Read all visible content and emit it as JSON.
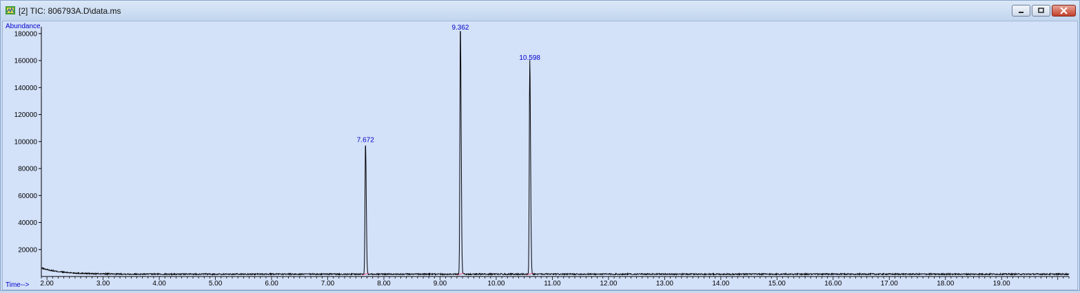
{
  "window": {
    "title": "[2] TIC: 806793A.D\\data.ms",
    "controls": [
      "minimize",
      "maximize",
      "close"
    ]
  },
  "colors": {
    "plot_background": "#d3e1f9",
    "trace": "#000000",
    "peak_label": "#0000cc",
    "axis_label": "#0000cc",
    "baseline_marker": "#e0507a"
  },
  "chart_data": {
    "type": "line",
    "ylabel": "Abundance",
    "xlabel": "Time-->",
    "xlim": [
      1.9,
      20.2
    ],
    "ylim": [
      0,
      185000
    ],
    "x_ticks": [
      "2.00",
      "3.00",
      "4.00",
      "5.00",
      "6.00",
      "7.00",
      "8.00",
      "9.00",
      "10.00",
      "11.00",
      "12.00",
      "13.00",
      "14.00",
      "15.00",
      "16.00",
      "17.00",
      "18.00",
      "19.00"
    ],
    "y_ticks": [
      "20000",
      "40000",
      "60000",
      "80000",
      "100000",
      "120000",
      "140000",
      "160000",
      "180000"
    ],
    "baseline_abundance": 2500,
    "peaks": [
      {
        "label": "7.672",
        "rt": 7.672,
        "abundance": 98000
      },
      {
        "label": "9.362",
        "rt": 9.362,
        "abundance": 185000
      },
      {
        "label": "10.598",
        "rt": 10.598,
        "abundance": 159000
      }
    ],
    "grid": false,
    "legend": "none"
  }
}
